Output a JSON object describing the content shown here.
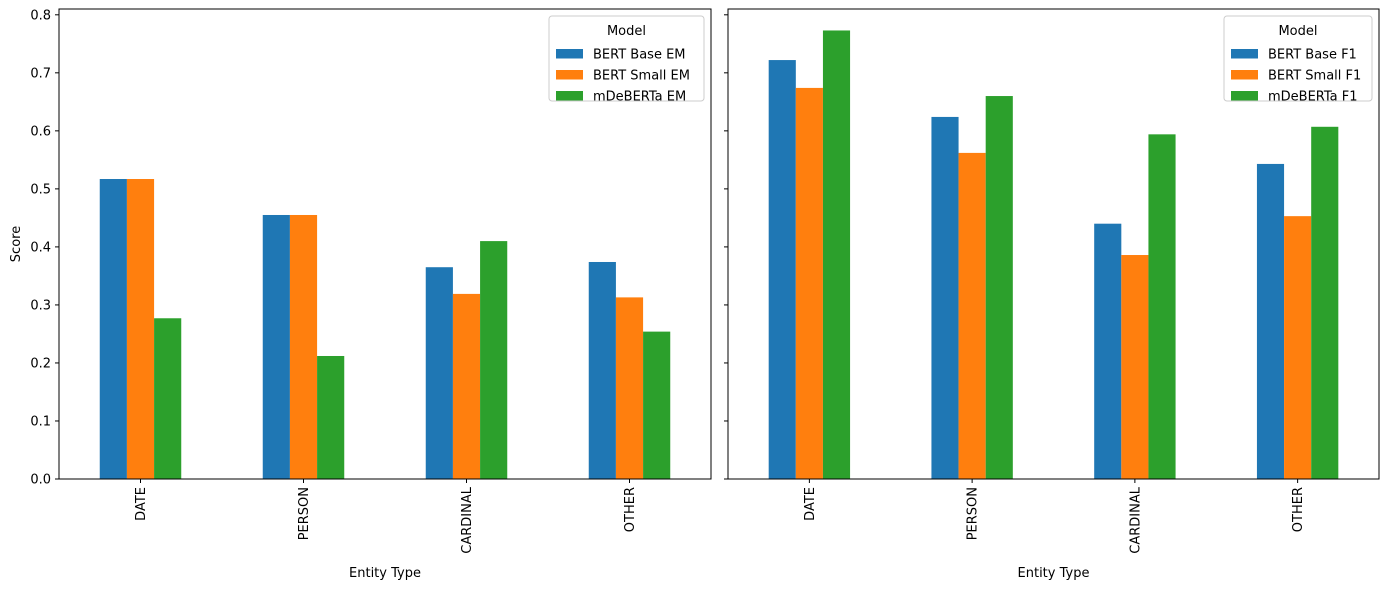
{
  "chart_data": [
    {
      "type": "bar",
      "categories": [
        "DATE",
        "PERSON",
        "CARDINAL",
        "OTHER"
      ],
      "series": [
        {
          "name": "BERT Base EM",
          "color": "#1f77b4",
          "values": [
            0.517,
            0.455,
            0.365,
            0.374
          ]
        },
        {
          "name": "BERT Small EM",
          "color": "#ff7f0e",
          "values": [
            0.517,
            0.455,
            0.319,
            0.313
          ]
        },
        {
          "name": "mDeBERTa EM",
          "color": "#2ca02c",
          "values": [
            0.277,
            0.212,
            0.41,
            0.254
          ]
        }
      ],
      "xlabel": "Entity Type",
      "ylabel": "Score",
      "ylim": [
        0,
        0.81
      ],
      "yticks": [
        "0.0",
        "0.1",
        "0.2",
        "0.3",
        "0.4",
        "0.5",
        "0.6",
        "0.7",
        "0.8"
      ],
      "legend_title": "Model",
      "legend_position": "top-right",
      "grid": false
    },
    {
      "type": "bar",
      "categories": [
        "DATE",
        "PERSON",
        "CARDINAL",
        "OTHER"
      ],
      "series": [
        {
          "name": "BERT Base F1",
          "color": "#1f77b4",
          "values": [
            0.722,
            0.624,
            0.44,
            0.543
          ]
        },
        {
          "name": "BERT Small F1",
          "color": "#ff7f0e",
          "values": [
            0.674,
            0.562,
            0.386,
            0.453
          ]
        },
        {
          "name": "mDeBERTa F1",
          "color": "#2ca02c",
          "values": [
            0.773,
            0.66,
            0.594,
            0.607
          ]
        }
      ],
      "xlabel": "Entity Type",
      "ylabel": "",
      "ylim": [
        0,
        0.81
      ],
      "legend_title": "Model",
      "legend_position": "top-right",
      "grid": false
    }
  ]
}
